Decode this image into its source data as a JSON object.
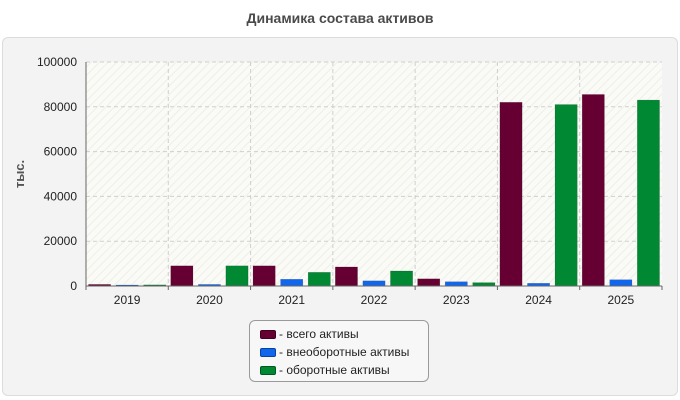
{
  "chart_data": {
    "type": "bar",
    "title": "Динамика состава активов",
    "ylabel": "тыс.",
    "xlabel": "",
    "categories": [
      "2019",
      "2020",
      "2021",
      "2022",
      "2023",
      "2024",
      "2025"
    ],
    "ylim": [
      0,
      100000
    ],
    "yticks": [
      "0",
      "20000",
      "40000",
      "60000",
      "80000",
      "100000"
    ],
    "grid": true,
    "legend_position": "bottom-center",
    "series": [
      {
        "name": "- всего активы",
        "color": "#660033",
        "values": [
          700,
          9000,
          9000,
          8500,
          3200,
          82000,
          85500
        ]
      },
      {
        "name": "- внеоборотные активы",
        "color": "#1166ee",
        "values": [
          300,
          700,
          3000,
          2300,
          1900,
          1200,
          2800
        ]
      },
      {
        "name": "- оборотные активы",
        "color": "#008833",
        "values": [
          500,
          9000,
          6100,
          6700,
          1500,
          81000,
          83000
        ]
      }
    ]
  }
}
